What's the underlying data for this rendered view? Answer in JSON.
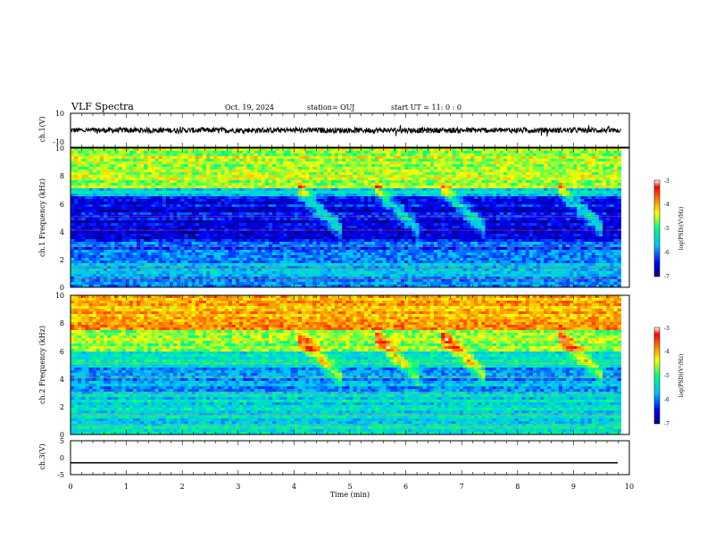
{
  "header": {
    "title": "VLF Spectra",
    "date": "Oct. 19, 2024",
    "station": "station= OUJ",
    "start": "start  UT =   11: 0  : 0"
  },
  "chart_data": [
    {
      "type": "line",
      "ylabel": "ch.1(V)",
      "ylim": [
        -10,
        10
      ],
      "yticks": [
        "10",
        "-10"
      ],
      "xlim": [
        0,
        10
      ],
      "series": [
        {
          "description_level": 0
        }
      ]
    },
    {
      "type": "heatmap",
      "ylabel": "ch.1 Frequency (kHz)",
      "ylim": [
        0,
        10
      ],
      "yticks": [
        "0",
        "2",
        "4",
        "6",
        "8",
        "10"
      ],
      "xlim": [
        0,
        10
      ],
      "data_end_min": 9.85,
      "chorus_bursts_min": [
        4.2,
        5.6,
        6.8,
        8.9
      ],
      "colorbar": {
        "label": "log(PSD)(V²/Hz)",
        "ticks": [
          "-3",
          "-4",
          "-5",
          "-6",
          "-7"
        ],
        "range": [
          -7,
          -3
        ],
        "colors": [
          "#000080",
          "#0000ff",
          "#00c0ff",
          "#00ff80",
          "#ffff00",
          "#ff8000",
          "#ff0000",
          "#ffffff"
        ]
      }
    },
    {
      "type": "heatmap",
      "ylabel": "ch.2 Frequency (kHz)",
      "ylim": [
        0,
        10
      ],
      "yticks": [
        "0",
        "2",
        "4",
        "6",
        "8",
        "10"
      ],
      "xlim": [
        0,
        10
      ],
      "data_end_min": 9.85,
      "chorus_bursts_min": [
        4.2,
        5.6,
        6.8,
        8.9
      ],
      "colorbar": {
        "label": "log(PSD)(V²/Hz)",
        "ticks": [
          "-3",
          "-4",
          "-5",
          "-6",
          "-7"
        ],
        "range": [
          -7,
          -3
        ],
        "colors": [
          "#000080",
          "#0000ff",
          "#00c0ff",
          "#00ff80",
          "#ffff00",
          "#ff8000",
          "#ff0000",
          "#ffffff"
        ]
      }
    },
    {
      "type": "line",
      "ylabel": "ch.3(V)",
      "ylim": [
        -5,
        5
      ],
      "yticks": [
        "5",
        "0",
        "-5"
      ],
      "xlim": [
        0,
        10
      ],
      "series": [
        {
          "constant_value": -1.5
        }
      ]
    }
  ],
  "xaxis": {
    "label": "Time (min)",
    "ticks": [
      "0",
      "1",
      "2",
      "3",
      "4",
      "5",
      "6",
      "7",
      "8",
      "9",
      "10"
    ]
  }
}
